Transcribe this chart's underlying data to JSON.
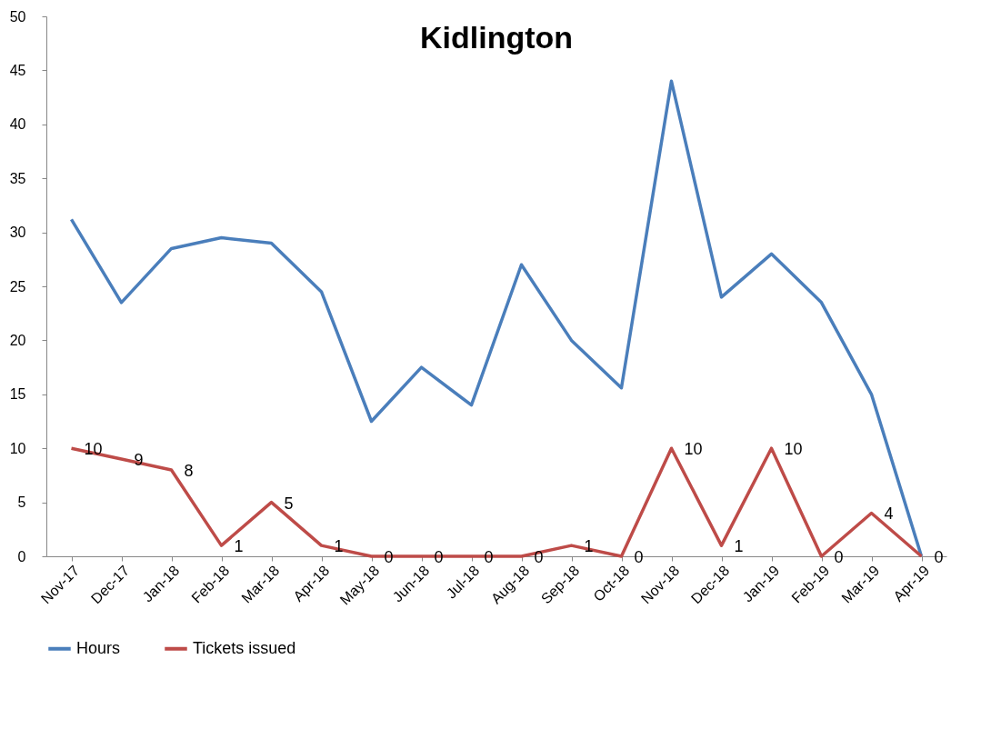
{
  "chart_data": {
    "type": "line",
    "title": "Kidlington",
    "categories": [
      "Nov-17",
      "Dec-17",
      "Jan-18",
      "Feb-18",
      "Mar-18",
      "Apr-18",
      "May-18",
      "Jun-18",
      "Jul-18",
      "Aug-18",
      "Sep-18",
      "Oct-18",
      "Nov-18",
      "Dec-18",
      "Jan-19",
      "Feb-19",
      "Mar-19",
      "Apr-19"
    ],
    "series": [
      {
        "name": "Hours",
        "color": "#4a7ebb",
        "values": [
          31.2,
          23.5,
          28.5,
          29.5,
          29,
          24.5,
          12.5,
          17.5,
          14,
          27,
          20,
          15.6,
          44,
          24,
          28,
          23.5,
          15,
          0
        ]
      },
      {
        "name": "Tickets issued",
        "color": "#be4b48",
        "values": [
          10,
          9,
          8,
          1,
          5,
          1,
          0,
          0,
          0,
          0,
          1,
          0,
          10,
          1,
          10,
          0,
          4,
          0
        ],
        "value_labels": [
          "10",
          "9",
          "8",
          "1",
          "5",
          "1",
          "0",
          "0",
          "0",
          "0",
          "1",
          "0",
          "10",
          "1",
          "10",
          "0",
          "4",
          "0"
        ]
      }
    ],
    "ylim": [
      0,
      50
    ],
    "yticks": [
      0,
      5,
      10,
      15,
      20,
      25,
      30,
      35,
      40,
      45,
      50
    ],
    "grid": false,
    "legend": "bottom"
  }
}
